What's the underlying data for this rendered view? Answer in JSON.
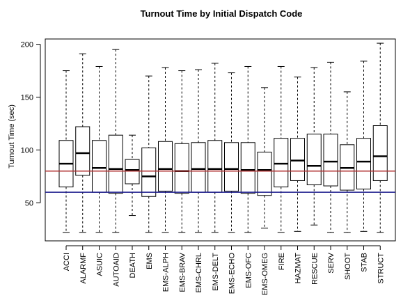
{
  "chart_data": {
    "type": "boxplot",
    "title": "Turnout Time by Initial Dispatch Code",
    "xlabel": "",
    "ylabel": "Turnout Time (sec)",
    "ylim": [
      14,
      205
    ],
    "yticks": [
      50,
      100,
      150,
      200
    ],
    "grid": false,
    "reference_lines": [
      {
        "value": 80,
        "color": "#b03030"
      },
      {
        "value": 60,
        "color": "#1a1a8c"
      }
    ],
    "categories": [
      "ACCI",
      "ALARMF",
      "ASUIC",
      "AUTOAID",
      "DEATH",
      "EMS",
      "EMS-ALPH",
      "EMS-BRAV",
      "EMS-CHRL",
      "EMS-DELT",
      "EMS-ECHO",
      "EMS-OFC",
      "EMS-OMEG",
      "FIRE",
      "HAZMAT",
      "RESCUE",
      "SERV",
      "SHOOT",
      "STAB",
      "STRUCT"
    ],
    "boxes": [
      {
        "min": 22,
        "q1": 65,
        "median": 87,
        "q3": 109,
        "max": 175
      },
      {
        "min": 22,
        "q1": 76,
        "median": 97,
        "q3": 122,
        "max": 191
      },
      {
        "min": 22,
        "q1": 60,
        "median": 83,
        "q3": 109,
        "max": 179
      },
      {
        "min": 22,
        "q1": 59,
        "median": 82,
        "q3": 114,
        "max": 195
      },
      {
        "min": 38,
        "q1": 68,
        "median": 81,
        "q3": 91,
        "max": 114
      },
      {
        "min": 22,
        "q1": 56,
        "median": 75,
        "q3": 102,
        "max": 170
      },
      {
        "min": 22,
        "q1": 61,
        "median": 82,
        "q3": 108,
        "max": 178
      },
      {
        "min": 22,
        "q1": 59,
        "median": 80,
        "q3": 106,
        "max": 175
      },
      {
        "min": 22,
        "q1": 60,
        "median": 82,
        "q3": 107,
        "max": 176
      },
      {
        "min": 22,
        "q1": 60,
        "median": 82,
        "q3": 109,
        "max": 182
      },
      {
        "min": 22,
        "q1": 61,
        "median": 82,
        "q3": 107,
        "max": 173
      },
      {
        "min": 22,
        "q1": 59,
        "median": 81,
        "q3": 107,
        "max": 179
      },
      {
        "min": 26,
        "q1": 57,
        "median": 81,
        "q3": 98,
        "max": 159
      },
      {
        "min": 22,
        "q1": 65,
        "median": 87,
        "q3": 111,
        "max": 179
      },
      {
        "min": 23,
        "q1": 71,
        "median": 90,
        "q3": 111,
        "max": 169
      },
      {
        "min": 29,
        "q1": 67,
        "median": 85,
        "q3": 115,
        "max": 178
      },
      {
        "min": 22,
        "q1": 66,
        "median": 89,
        "q3": 115,
        "max": 183
      },
      {
        "min": 22,
        "q1": 62,
        "median": 83,
        "q3": 105,
        "max": 155
      },
      {
        "min": 23,
        "q1": 63,
        "median": 89,
        "q3": 111,
        "max": 184
      },
      {
        "min": 22,
        "q1": 71,
        "median": 94,
        "q3": 123,
        "max": 201
      }
    ]
  }
}
